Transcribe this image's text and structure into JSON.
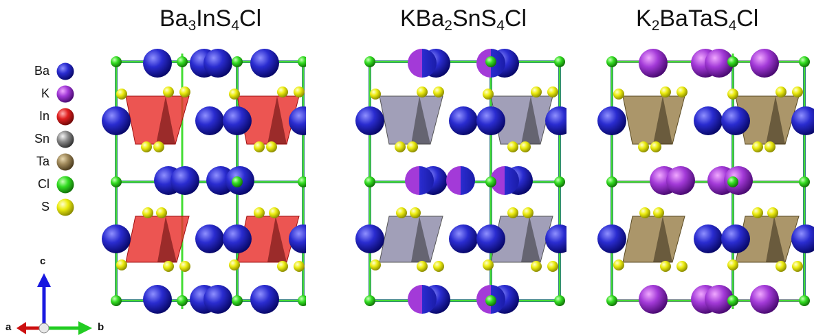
{
  "titles": [
    {
      "base1": "Ba",
      "sub1": "3",
      "base2": "InS",
      "sub2": "4",
      "base3": "Cl"
    },
    {
      "base1": "KBa",
      "sub1": "2",
      "base2": "SnS",
      "sub2": "4",
      "base3": "Cl"
    },
    {
      "base1": "K",
      "sub1": "2",
      "base2": "BaTaS",
      "sub2": "4",
      "base3": "Cl"
    }
  ],
  "legend": [
    {
      "label": "Ba",
      "color": "#2426c8"
    },
    {
      "label": "K",
      "color": "#8a1fc4"
    },
    {
      "label": "In",
      "color": "#e02020"
    },
    {
      "label": "Sn",
      "color": "#8c8c8c"
    },
    {
      "label": "Ta",
      "color": "#a08a5c"
    },
    {
      "label": "Cl",
      "color": "#33dd22"
    },
    {
      "label": "S",
      "color": "#ecec10"
    }
  ],
  "axes": {
    "c": "c",
    "a": "a",
    "b": "b"
  },
  "structures": [
    {
      "name": "Ba3InS4Cl",
      "polyhedron_color": "#e8302c",
      "site_A": "Ba",
      "site_B": "Ba"
    },
    {
      "name": "KBa2SnS4Cl",
      "polyhedron_color": "#8c8aa8",
      "site_A": "K/Ba",
      "site_B": "Ba"
    },
    {
      "name": "K2BaTaS4Cl",
      "polyhedron_color": "#9c8450",
      "site_A": "K",
      "site_B": "Ba"
    }
  ]
}
